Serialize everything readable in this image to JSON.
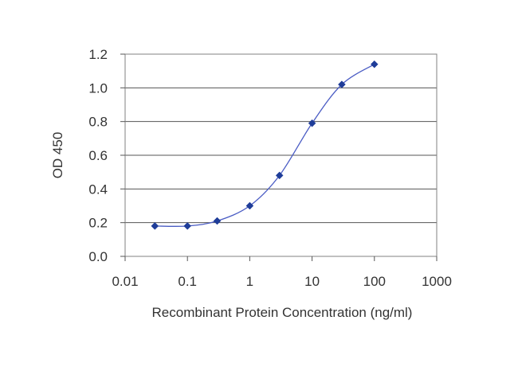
{
  "chart_data": {
    "type": "line",
    "title": "",
    "xlabel": "Recombinant Protein Concentration (ng/ml)",
    "ylabel": "OD 450",
    "xscale": "log",
    "xlim": [
      0.01,
      1000
    ],
    "ylim": [
      0,
      1.2
    ],
    "x_ticks": [
      "0.01",
      "0.1",
      "1",
      "10",
      "100",
      "1000"
    ],
    "y_ticks": [
      "0.0",
      "0.2",
      "0.4",
      "0.6",
      "0.8",
      "1.0",
      "1.2"
    ],
    "grid": "horizontal",
    "legend": "none",
    "series": [
      {
        "x": [
          0.03,
          0.1,
          0.3,
          1,
          3,
          10,
          30,
          100
        ],
        "y": [
          0.18,
          0.18,
          0.21,
          0.3,
          0.48,
          0.79,
          1.02,
          1.14
        ],
        "color": "#1f3d99",
        "marker": "diamond"
      }
    ]
  }
}
